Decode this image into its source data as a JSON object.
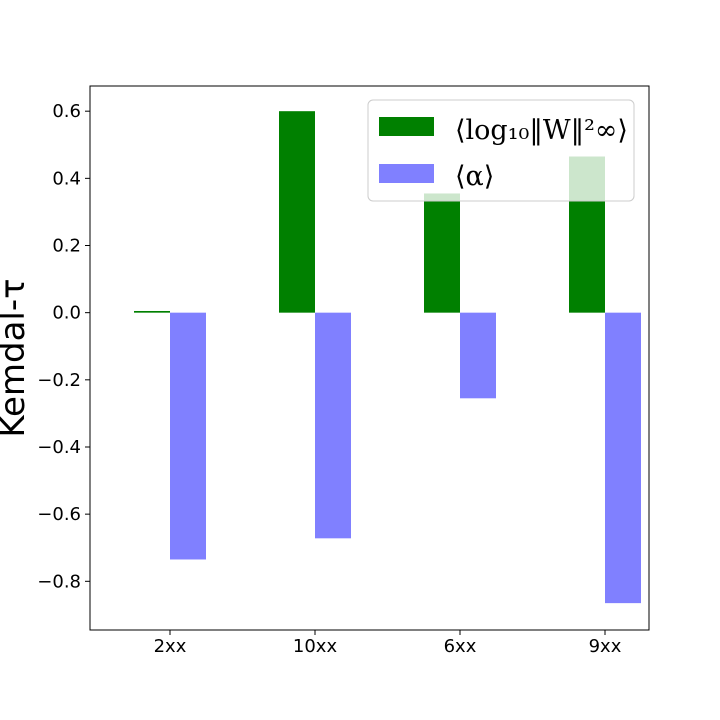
{
  "chart_data": {
    "type": "bar",
    "categories": [
      "2xx",
      "10xx",
      "6xx",
      "9xx"
    ],
    "series": [
      {
        "name": "⟨log₁₀‖W‖²∞⟩",
        "values": [
          0.005,
          0.6,
          0.355,
          0.465
        ],
        "color": "#008000"
      },
      {
        "name": "⟨α⟩",
        "values": [
          -0.735,
          -0.672,
          -0.255,
          -0.865
        ],
        "color": "#8080ff"
      }
    ],
    "title": "",
    "xlabel": "",
    "ylabel": "Kemdal-τ",
    "ylim": [
      -0.945,
      0.675
    ],
    "yticks": [
      0.6,
      0.4,
      0.2,
      0.0,
      -0.2,
      -0.4,
      -0.6,
      -0.8
    ],
    "ytick_labels": [
      "0.6",
      "0.4",
      "0.2",
      "0.0",
      "−0.2",
      "−0.4",
      "−0.6",
      "−0.8"
    ],
    "legend_position": "top-right",
    "grid": false
  }
}
